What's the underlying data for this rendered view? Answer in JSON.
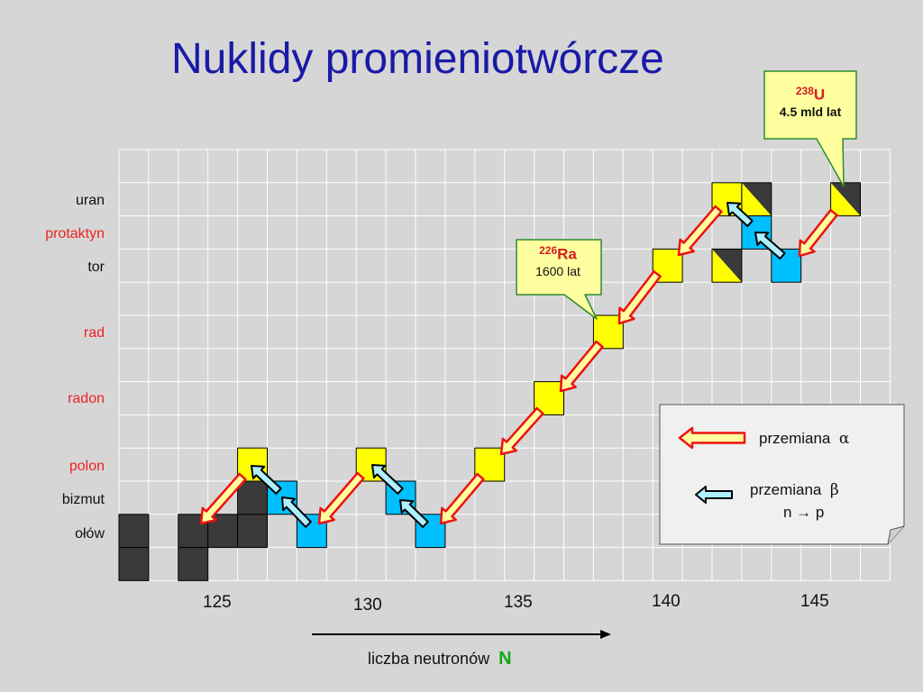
{
  "title": "Nuklidy promieniotwórcze",
  "elements": [
    {
      "name": "uran",
      "color": "#111111"
    },
    {
      "name": "protaktyn",
      "color": "#ee2222"
    },
    {
      "name": "tor",
      "color": "#111111"
    },
    {
      "name": "rad",
      "color": "#ee2222"
    },
    {
      "name": "radon",
      "color": "#ee2222"
    },
    {
      "name": "polon",
      "color": "#ee2222"
    },
    {
      "name": "bizmut",
      "color": "#111111"
    },
    {
      "name": "ołów",
      "color": "#111111"
    }
  ],
  "x_ticks": [
    "125",
    "130",
    "135",
    "140",
    "145"
  ],
  "axis_label": "liczba neutronów",
  "axis_symbol": "N",
  "callout_u": {
    "mass": "238",
    "symbol": "U",
    "halflife": "4.5 mld lat"
  },
  "callout_ra": {
    "mass": "226",
    "symbol": "Ra",
    "halflife": "1600 lat"
  },
  "legend": {
    "alpha_label": "przemiana",
    "alpha_symbol": "α",
    "beta_label": "przemiana",
    "beta_symbol": "β",
    "beta_note": "n → p"
  },
  "colors": {
    "alpha_decay": "#ffff00",
    "beta_decay": "#00bfff",
    "stable": "#3a3a3a",
    "alpha_arrow_fill": "#ffffa0",
    "alpha_arrow_stroke": "#ee1111",
    "beta_arrow_fill": "#aef0ff",
    "title": "#1a1aa8",
    "callout_bg": "#ffffa0"
  }
}
